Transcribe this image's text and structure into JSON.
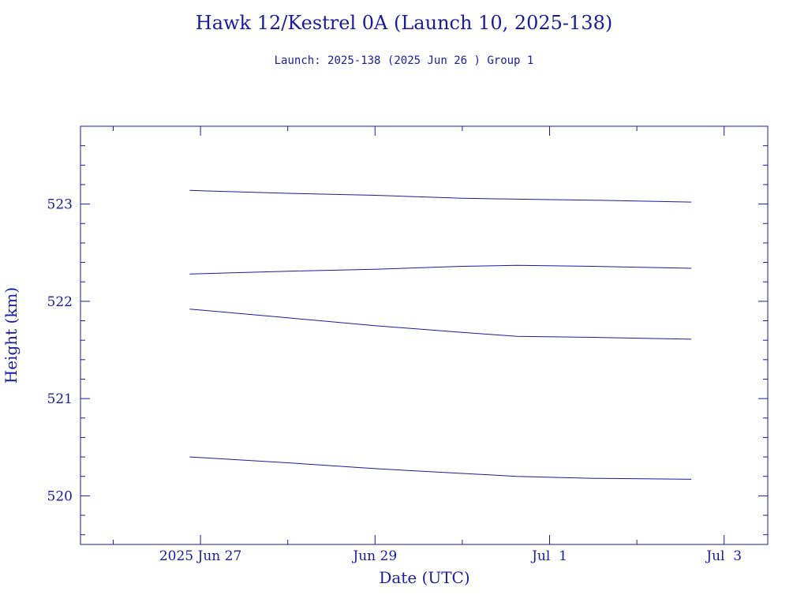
{
  "colors": {
    "ink": "#1a1aa0",
    "background": "#ffffff"
  },
  "chart_data": {
    "type": "line",
    "title": "Hawk 12/Kestrel 0A (Launch 10, 2025-138)",
    "subtitle": "Launch: 2025-138  (2025 Jun 26 )  Group 1",
    "xlabel": "Date (UTC)",
    "ylabel": "Height (km)",
    "xlim": [
      "2025-06-25T15:00",
      "2025-07-03T12:00"
    ],
    "ylim": [
      519.5,
      523.8
    ],
    "x_major_ticks": [
      {
        "date": "2025-06-27",
        "label": "2025 Jun 27"
      },
      {
        "date": "2025-06-29",
        "label": "Jun 29"
      },
      {
        "date": "2025-07-01",
        "label": "Jul  1"
      },
      {
        "date": "2025-07-03",
        "label": "Jul  3"
      }
    ],
    "y_major_ticks": [
      520,
      521,
      522,
      523
    ],
    "grid": false,
    "series": [
      {
        "x": [
          "2025-06-26T21:00",
          "2025-06-28T00:00",
          "2025-06-29T00:00",
          "2025-06-30T00:00",
          "2025-06-30T15:00",
          "2025-07-01T12:00",
          "2025-07-02T15:00"
        ],
        "values": [
          523.14,
          523.11,
          523.09,
          523.06,
          523.05,
          523.04,
          523.02
        ]
      },
      {
        "x": [
          "2025-06-26T21:00",
          "2025-06-28T00:00",
          "2025-06-29T00:00",
          "2025-06-30T00:00",
          "2025-06-30T15:00",
          "2025-07-01T12:00",
          "2025-07-02T15:00"
        ],
        "values": [
          522.28,
          522.31,
          522.33,
          522.36,
          522.37,
          522.36,
          522.34
        ]
      },
      {
        "x": [
          "2025-06-26T21:00",
          "2025-06-28T00:00",
          "2025-06-29T00:00",
          "2025-06-30T00:00",
          "2025-06-30T15:00",
          "2025-07-01T12:00",
          "2025-07-02T15:00"
        ],
        "values": [
          521.92,
          521.83,
          521.75,
          521.68,
          521.64,
          521.63,
          521.61
        ]
      },
      {
        "x": [
          "2025-06-26T21:00",
          "2025-06-28T00:00",
          "2025-06-29T00:00",
          "2025-06-30T00:00",
          "2025-06-30T15:00",
          "2025-07-01T12:00",
          "2025-07-02T15:00"
        ],
        "values": [
          520.4,
          520.34,
          520.28,
          520.23,
          520.2,
          520.18,
          520.17
        ]
      }
    ]
  }
}
